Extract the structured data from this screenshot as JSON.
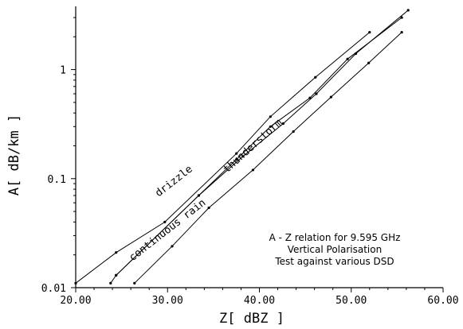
{
  "chart_data": {
    "type": "line",
    "xlabel": "Z[ dBZ ]",
    "ylabel": "A[ dB/km ]",
    "xlim": [
      20,
      60
    ],
    "ylim": [
      0.01,
      3.8
    ],
    "yscale": "log",
    "xticks": [
      "20.00",
      "30.00",
      "40.00",
      "50.00",
      "60.00"
    ],
    "xtick_values": [
      20,
      30,
      40,
      50,
      60
    ],
    "yticks": [
      "0.01",
      "0.1",
      "1"
    ],
    "ytick_values": [
      0.01,
      0.1,
      1
    ],
    "annotation": [
      "A - Z relation for 9.595 GHz",
      "Vertical Polarisation",
      "Test against various DSD"
    ],
    "series": [
      {
        "name": "drizzle",
        "x": [
          20.0,
          24.4,
          29.7,
          37.5,
          41.2,
          46.1,
          52.0
        ],
        "y": [
          0.011,
          0.021,
          0.04,
          0.17,
          0.37,
          0.85,
          2.2
        ]
      },
      {
        "name": "continuous rain",
        "x": [
          23.8,
          24.4,
          33.4,
          37.5,
          41.2,
          45.5,
          49.6,
          55.5
        ],
        "y": [
          0.011,
          0.013,
          0.07,
          0.15,
          0.3,
          0.55,
          1.25,
          3.0
        ]
      },
      {
        "name": "",
        "x": [
          24.4,
          33.4,
          38.2,
          42.6,
          46.2,
          50.5,
          56.2
        ],
        "y": [
          0.013,
          0.07,
          0.16,
          0.32,
          0.6,
          1.4,
          3.5
        ]
      },
      {
        "name": "thunderstorm",
        "x": [
          26.4,
          30.5,
          34.5,
          39.3,
          43.7,
          47.8,
          51.9,
          55.5
        ],
        "y": [
          0.011,
          0.024,
          0.054,
          0.12,
          0.27,
          0.56,
          1.15,
          2.2
        ]
      }
    ]
  }
}
